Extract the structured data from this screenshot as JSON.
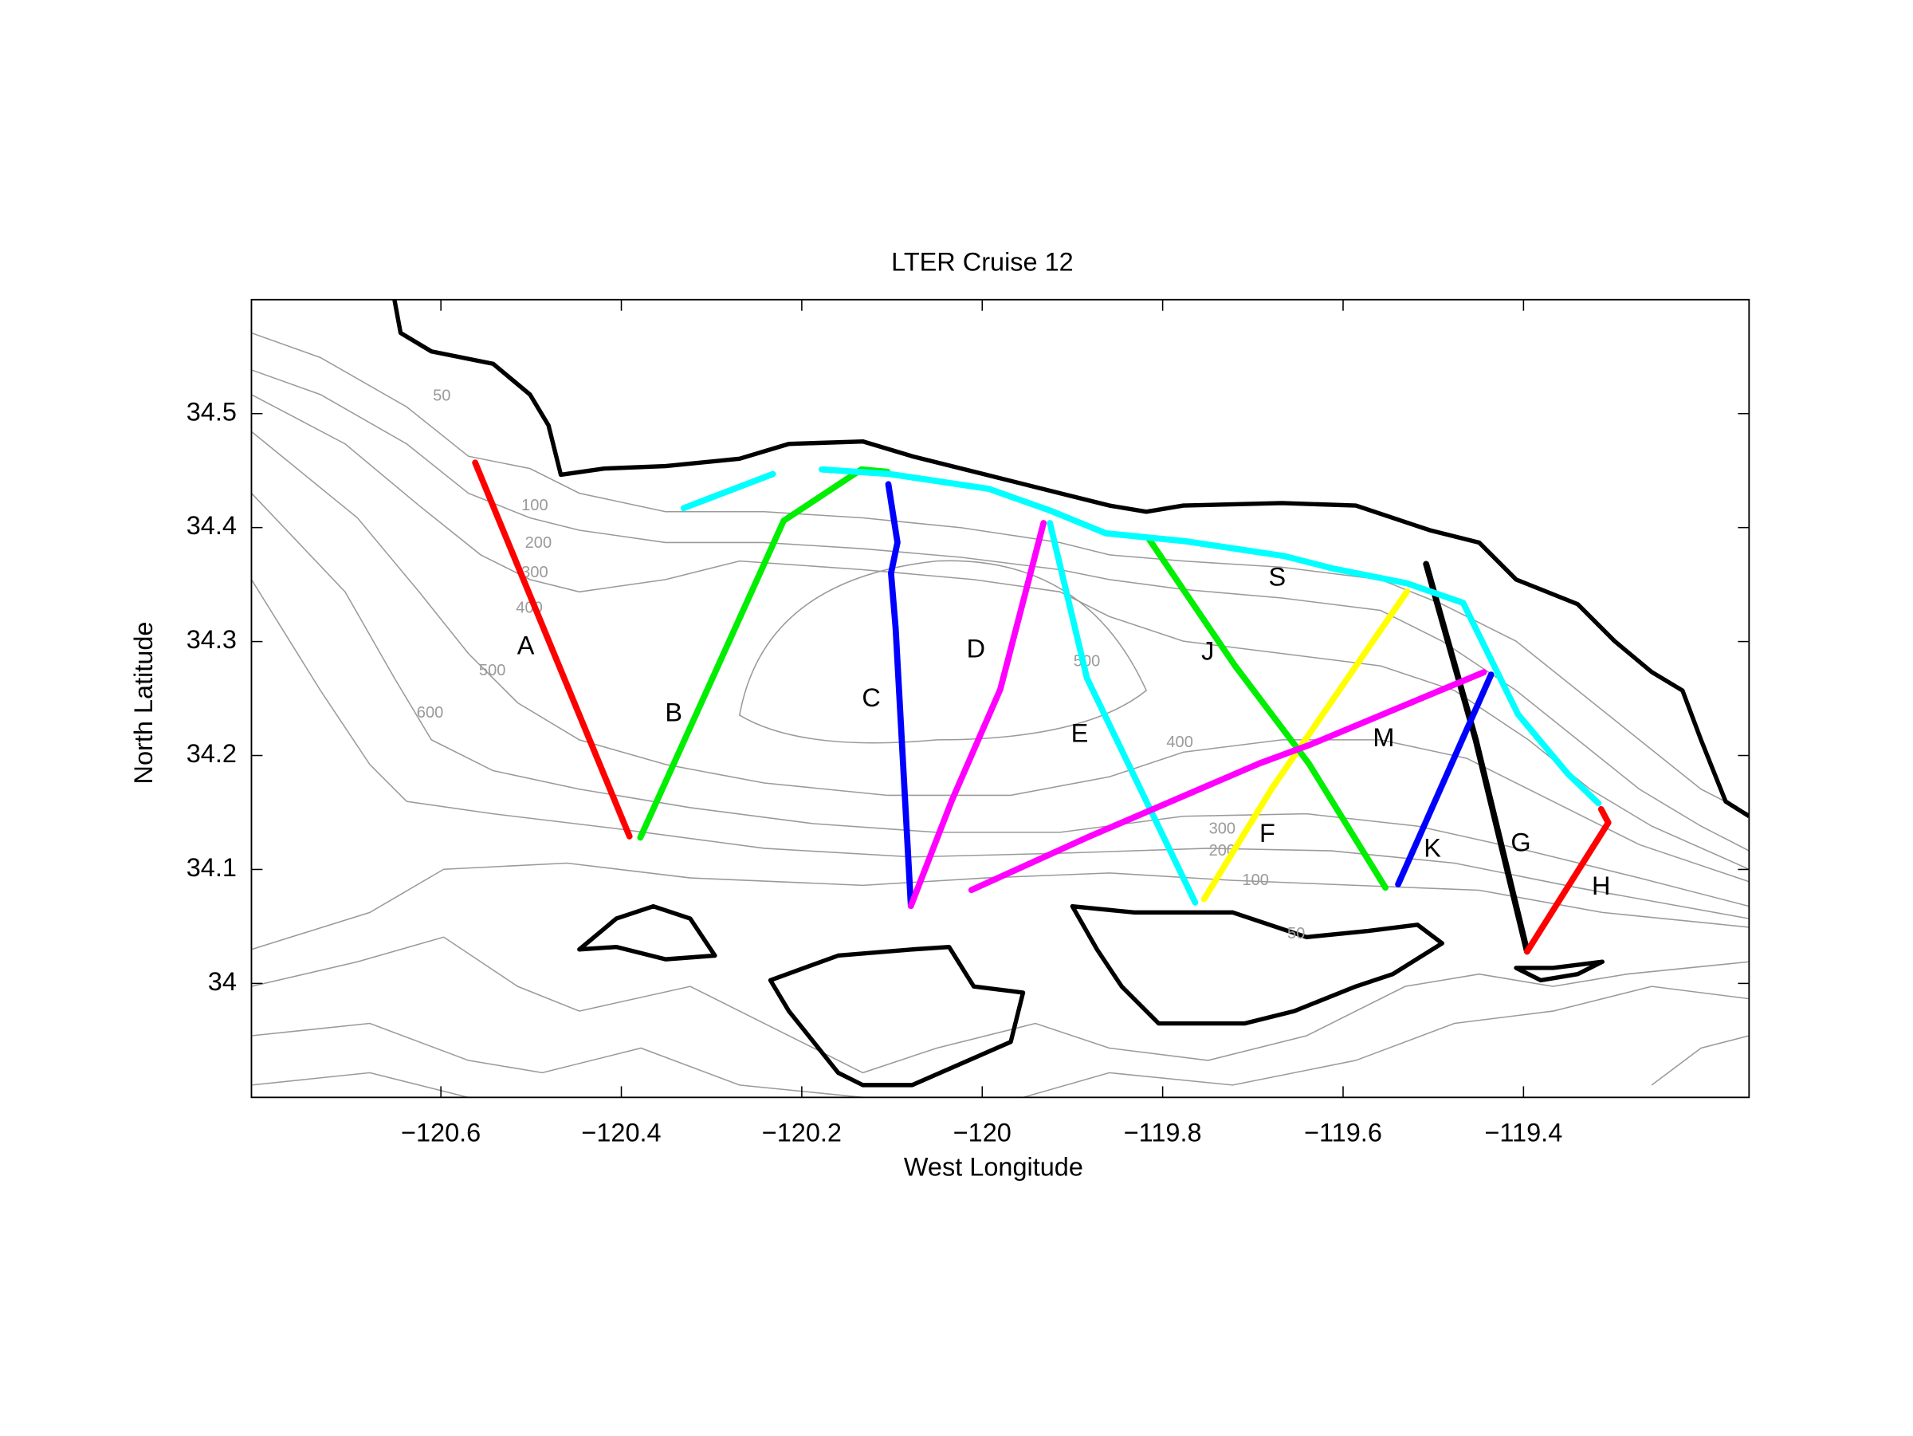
{
  "chart_data": {
    "type": "line",
    "title": "LTER Cruise 12",
    "x_label": "West Longitude",
    "y_label": "North Latitude",
    "xlim": [
      -120.81,
      -119.15
    ],
    "ylim": [
      33.9,
      34.6
    ],
    "xticks": [
      {
        "value": -120.6,
        "label": "−120.6"
      },
      {
        "value": -120.4,
        "label": "−120.4"
      },
      {
        "value": -120.2,
        "label": "−120.2"
      },
      {
        "value": -120,
        "label": "−120"
      },
      {
        "value": -119.8,
        "label": "−119.8"
      },
      {
        "value": -119.6,
        "label": "−119.6"
      },
      {
        "value": -119.4,
        "label": "−119.4"
      }
    ],
    "yticks": [
      34,
      34.1,
      34.2,
      34.3,
      34.4,
      34.5
    ],
    "series": [
      {
        "name": "A",
        "color": "#ff0000",
        "label_at": [
          -120.506,
          34.295
        ],
        "x": [
          -120.562,
          -120.391
        ],
        "y": [
          34.457,
          34.129
        ]
      },
      {
        "name": "B",
        "color": "#00ee00",
        "label_at": [
          -120.342,
          34.236
        ],
        "x": [
          -120.379,
          -120.22,
          -120.134,
          -120.105
        ],
        "y": [
          34.128,
          34.406,
          34.451,
          34.449
        ]
      },
      {
        "name": "C",
        "color": "#0000ff",
        "label_at": [
          -120.123,
          34.249
        ],
        "x": [
          -120.104,
          -120.094,
          -120.101,
          -120.096,
          -120.079
        ],
        "y": [
          34.438,
          34.387,
          34.36,
          34.312,
          34.068
        ]
      },
      {
        "name": "D",
        "color": "#ff00ff",
        "label_at": [
          -120.007,
          34.292
        ],
        "x": [
          -120.079,
          -120.034,
          -119.98,
          -119.932
        ],
        "y": [
          34.068,
          34.16,
          34.258,
          34.404
        ]
      },
      {
        "name": "E",
        "color": "#00ffff",
        "label_at": [
          -119.892,
          34.218
        ],
        "x": [
          -119.925,
          -119.884,
          -119.764
        ],
        "y": [
          34.404,
          34.268,
          34.071
        ]
      },
      {
        "name": "F",
        "color": "#ffff00",
        "label_at": [
          -119.684,
          34.13
        ],
        "x": [
          -119.754,
          -119.679,
          -119.529
        ],
        "y": [
          34.074,
          34.171,
          34.344
        ]
      },
      {
        "name": "J",
        "color": "#00ee00",
        "label_at": [
          -119.75,
          34.29
        ],
        "x": [
          -119.816,
          -119.72,
          -119.638,
          -119.553
        ],
        "y": [
          34.391,
          34.279,
          34.193,
          34.084
        ]
      },
      {
        "name": "G",
        "color": "#000000",
        "label_at": [
          -119.403,
          34.122
        ],
        "x": [
          -119.508,
          -119.453,
          -119.396
        ],
        "y": [
          34.368,
          34.214,
          34.028
        ]
      },
      {
        "name": "K",
        "color": "#0000ff",
        "label_at": [
          -119.501,
          34.117
        ],
        "x": [
          -119.539,
          -119.436
        ],
        "y": [
          34.087,
          34.271
        ]
      },
      {
        "name": "H",
        "color": "#ff0000",
        "label_at": [
          -119.314,
          34.084
        ],
        "x": [
          -119.396,
          -119.306,
          -119.314
        ],
        "y": [
          34.028,
          34.141,
          34.153
        ]
      },
      {
        "name": "M",
        "color": "#ff00ff",
        "label_at": [
          -119.555,
          34.214
        ],
        "x": [
          -120.012,
          -119.884,
          -119.693,
          -119.638,
          -119.444
        ],
        "y": [
          34.082,
          34.128,
          34.193,
          34.209,
          34.273
        ]
      },
      {
        "name": "S",
        "color": "#00ffff",
        "label_at": [
          -119.673,
          34.355
        ],
        "x": [
          -120.331,
          -120.232,
          null,
          -120.178,
          -120.103,
          -119.993,
          -119.925,
          -119.863,
          -119.775,
          -119.665,
          -119.611,
          -119.529,
          -119.467,
          -119.406,
          -119.351,
          -119.317
        ],
        "y": [
          34.417,
          34.447,
          null,
          34.451,
          34.447,
          34.434,
          34.415,
          34.395,
          34.388,
          34.375,
          34.364,
          34.351,
          34.334,
          34.236,
          34.184,
          34.158
        ]
      }
    ],
    "contour_labels": [
      {
        "text": 50,
        "x": -120.599,
        "y": 34.515
      },
      {
        "text": 100,
        "x": -120.496,
        "y": 34.419
      },
      {
        "text": 200,
        "x": -120.492,
        "y": 34.386
      },
      {
        "text": 300,
        "x": -120.496,
        "y": 34.36
      },
      {
        "text": 400,
        "x": -120.502,
        "y": 34.329
      },
      {
        "text": 500,
        "x": -120.543,
        "y": 34.274
      },
      {
        "text": 600,
        "x": -120.612,
        "y": 34.237
      },
      {
        "text": 500,
        "x": -119.884,
        "y": 34.282
      },
      {
        "text": 400,
        "x": -119.781,
        "y": 34.211
      },
      {
        "text": 300,
        "x": -119.734,
        "y": 34.135
      },
      {
        "text": 200,
        "x": -119.734,
        "y": 34.116
      },
      {
        "text": 100,
        "x": -119.697,
        "y": 34.09
      },
      {
        "text": 50,
        "x": -119.652,
        "y": 34.043
      }
    ]
  }
}
